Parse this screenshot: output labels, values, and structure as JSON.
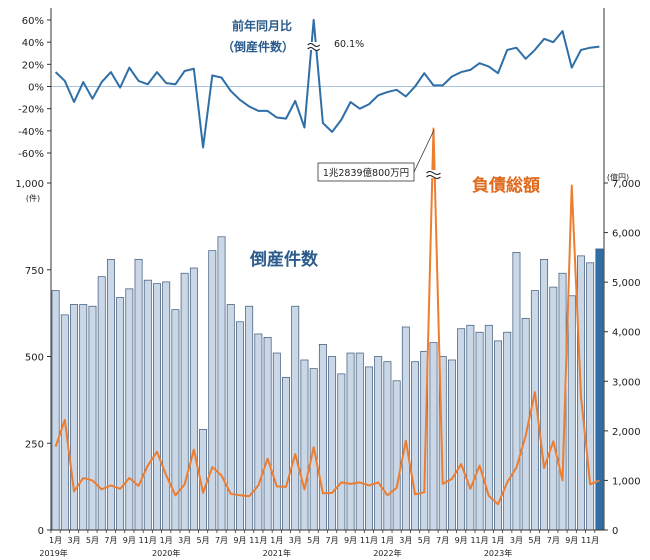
{
  "chart_data": {
    "type": "bar",
    "colors": {
      "bars": "#c9d7e6",
      "bar_stroke": "#3b5676",
      "last_bar": "#2f6fa8",
      "liability_line": "#ed7d31",
      "yoy_line": "#2e6fa7",
      "title_blue": "#2a5b8c",
      "title_orange": "#e06a1e"
    },
    "titles": {
      "bankruptcies": "倒産件数",
      "liabilities": "負債総額",
      "yoy": "前年同月比",
      "yoy_sub": "（倒産件数）"
    },
    "left_axis": {
      "unit": "(件)",
      "ylim": [
        0,
        1000
      ],
      "ticks": [
        0,
        250,
        500,
        750,
        1000
      ],
      "tick_labels": [
        "0",
        "250",
        "500",
        "750",
        "1,000"
      ]
    },
    "right_axis": {
      "unit": "(億円)",
      "ylim": [
        0,
        7000
      ],
      "ticks": [
        0,
        1000,
        2000,
        3000,
        4000,
        5000,
        6000,
        7000
      ],
      "tick_labels": [
        "0",
        "1,000",
        "2,000",
        "3,000",
        "4,000",
        "5,000",
        "6,000",
        "7,000"
      ]
    },
    "yoy_axis": {
      "ylim": [
        -60,
        60
      ],
      "ticks": [
        60,
        40,
        20,
        0,
        -20,
        -40,
        -60
      ],
      "tick_labels": [
        "60%",
        "40%",
        "20%",
        "0%",
        "-20%",
        "-40%",
        "-60%"
      ]
    },
    "x_month_labels": [
      "1月",
      "",
      "3月",
      "",
      "5月",
      "",
      "7月",
      "",
      "9月",
      "",
      "11月",
      "",
      "1月",
      "",
      "3月",
      "",
      "5月",
      "",
      "7月",
      "",
      "9月",
      "",
      "11月",
      "",
      "1月",
      "",
      "3月",
      "",
      "5月",
      "",
      "7月",
      "",
      "9月",
      "",
      "11月",
      "",
      "1月",
      "",
      "3月",
      "",
      "5月",
      "",
      "7月",
      "",
      "9月",
      "",
      "11月",
      "",
      "1月",
      "",
      "3月",
      "",
      "5月",
      "",
      "7月",
      "",
      "9月",
      "",
      "11月",
      ""
    ],
    "year_labels": [
      "2019年",
      "2020年",
      "2021年",
      "2022年",
      "2023年"
    ],
    "year_label_month_index": [
      0,
      12,
      24,
      36,
      48
    ],
    "series": [
      {
        "name": "倒産件数",
        "type": "bar",
        "values": [
          690,
          620,
          650,
          650,
          645,
          730,
          780,
          670,
          695,
          780,
          720,
          710,
          715,
          635,
          740,
          755,
          290,
          805,
          845,
          650,
          600,
          645,
          565,
          555,
          510,
          440,
          645,
          490,
          465,
          535,
          500,
          450,
          510,
          510,
          470,
          500,
          485,
          430,
          585,
          485,
          515,
          540,
          500,
          490,
          580,
          590,
          570,
          590,
          545,
          570,
          800,
          610,
          690,
          780,
          700,
          740,
          675,
          790,
          770,
          810
        ]
      },
      {
        "name": "負債総額",
        "type": "line",
        "values": [
          1680,
          2220,
          780,
          1050,
          1000,
          820,
          900,
          830,
          1050,
          890,
          1300,
          1580,
          1100,
          700,
          920,
          1620,
          750,
          1270,
          1100,
          730,
          700,
          680,
          900,
          1440,
          880,
          870,
          1530,
          820,
          1670,
          740,
          750,
          960,
          930,
          960,
          900,
          960,
          700,
          850,
          1800,
          720,
          760,
          8100,
          930,
          1030,
          1330,
          830,
          1300,
          690,
          520,
          960,
          1260,
          1900,
          2780,
          1250,
          1790,
          1000,
          6950,
          2700,
          920,
          1000
        ]
      },
      {
        "name": "前年同月比",
        "type": "line",
        "values": [
          13,
          5,
          -14,
          4,
          -11,
          4,
          13,
          -1,
          17,
          5,
          2,
          13,
          3,
          2,
          14,
          16,
          -55,
          10,
          8,
          -4,
          -12,
          -18,
          -22,
          -22,
          -28,
          -29,
          -13,
          -37,
          60.1,
          -33,
          -41,
          -30,
          -14,
          -20,
          -16,
          -8,
          -5,
          -3,
          -9,
          0,
          12,
          1,
          1,
          9,
          13,
          15,
          21,
          18,
          12,
          33,
          35,
          25,
          33,
          43,
          40,
          50,
          17,
          33,
          35,
          36
        ]
      }
    ],
    "annotations": [
      "60.1%",
      "1兆2839億800万円"
    ]
  }
}
